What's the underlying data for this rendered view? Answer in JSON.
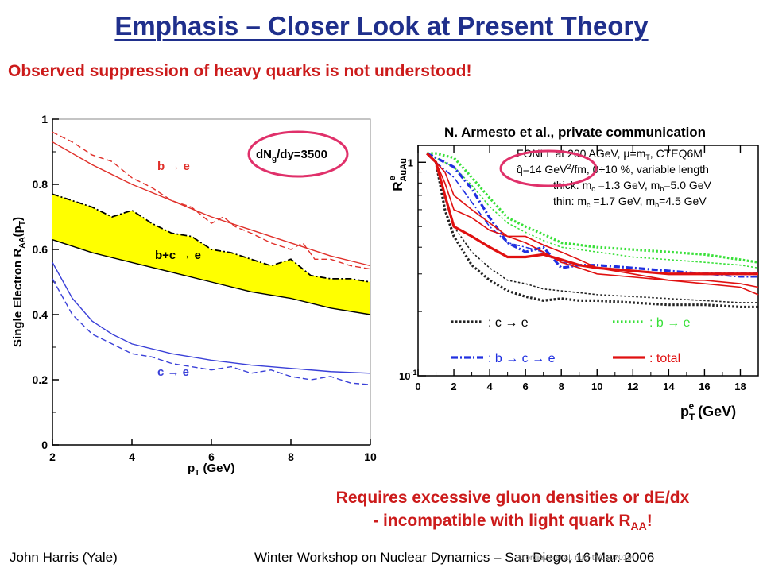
{
  "title": "Emphasis – Closer Look at Present Theory",
  "subtitle": "Observed suppression of heavy quarks is not understood!",
  "conclusion": {
    "line1": "Requires excessive gluon densities or dE/dx",
    "line2_prefix": "- incompatible with light quark R",
    "line2_sub": "AA",
    "line2_suffix": "!"
  },
  "footer": {
    "author": "John Harris (Yale)",
    "event": "Winter Workshop on Nuclear Dynamics – San Diego, 16 Mar. 2006",
    "reference": "Djordjevic et al. nucl-th/0507019"
  },
  "colors": {
    "title": "#1f2f8c",
    "accent": "#cc1b1b",
    "band": "#ffff00",
    "highlight_circle": "#e0306a"
  },
  "chart_data": [
    {
      "type": "line",
      "ylabel_prefix": "Single Electron R",
      "ylabel_sub": "AA",
      "ylabel_suffix": "(p",
      "ylabel_sub2": "T",
      "ylabel_end": ")",
      "xlabel_prefix": "p",
      "xlabel_sub": "T",
      "xlabel_suffix": " (GeV)",
      "xlim": [
        2,
        10
      ],
      "ylim": [
        0,
        1
      ],
      "x_ticks": [
        "2",
        "4",
        "6",
        "8",
        "10"
      ],
      "y_ticks": [
        "1",
        "0.8",
        "0.6",
        "0.4",
        "0.2",
        "0"
      ],
      "annotation_prefix": "dN",
      "annotation_sub": "g",
      "annotation_suffix": "/dy=3500",
      "labels": {
        "be": "b → e",
        "bce": "b+c → e",
        "ce": "c → e"
      },
      "series": [
        {
          "label_key": "be",
          "style": "solid",
          "color": "#e0302a",
          "x": [
            2,
            3,
            4,
            5,
            6,
            7,
            8,
            9,
            10
          ],
          "y": [
            0.93,
            0.86,
            0.8,
            0.75,
            0.7,
            0.66,
            0.62,
            0.58,
            0.55
          ]
        },
        {
          "label_key": "be",
          "style": "dashed",
          "color": "#e0302a",
          "x": [
            2,
            2.5,
            3,
            3.5,
            4,
            4.5,
            5,
            5.5,
            6,
            6.3,
            6.6,
            7,
            7.5,
            8,
            8.3,
            8.6,
            9,
            9.5,
            10
          ],
          "y": [
            0.96,
            0.93,
            0.89,
            0.87,
            0.82,
            0.79,
            0.75,
            0.73,
            0.68,
            0.7,
            0.67,
            0.65,
            0.62,
            0.6,
            0.62,
            0.57,
            0.57,
            0.55,
            0.54
          ]
        },
        {
          "label_key": "bce",
          "style": "dashdot",
          "color": "#000000",
          "band_upper": true,
          "x": [
            2,
            2.5,
            3,
            3.5,
            4,
            4.5,
            5,
            5.5,
            6,
            6.5,
            7,
            7.5,
            8,
            8.5,
            9,
            9.5,
            10
          ],
          "y": [
            0.77,
            0.75,
            0.73,
            0.7,
            0.72,
            0.68,
            0.65,
            0.64,
            0.6,
            0.59,
            0.57,
            0.55,
            0.57,
            0.52,
            0.51,
            0.51,
            0.5
          ]
        },
        {
          "label_key": "bce",
          "style": "solid",
          "color": "#000000",
          "band_lower": true,
          "x": [
            2,
            3,
            4,
            5,
            6,
            7,
            8,
            9,
            10
          ],
          "y": [
            0.63,
            0.59,
            0.56,
            0.53,
            0.5,
            0.47,
            0.45,
            0.42,
            0.4
          ]
        },
        {
          "label_key": "ce",
          "style": "solid",
          "color": "#3a40d8",
          "x": [
            2,
            2.5,
            3,
            3.5,
            4,
            5,
            6,
            7,
            8,
            9,
            10
          ],
          "y": [
            0.56,
            0.45,
            0.38,
            0.34,
            0.31,
            0.28,
            0.26,
            0.245,
            0.235,
            0.225,
            0.22
          ]
        },
        {
          "label_key": "ce",
          "style": "dashed",
          "color": "#3a40d8",
          "x": [
            2,
            2.5,
            3,
            3.5,
            4,
            4.5,
            5,
            5.5,
            6,
            6.5,
            7,
            7.5,
            8,
            8.5,
            9,
            9.5,
            10
          ],
          "y": [
            0.51,
            0.4,
            0.34,
            0.31,
            0.28,
            0.27,
            0.25,
            0.24,
            0.23,
            0.24,
            0.22,
            0.23,
            0.21,
            0.2,
            0.21,
            0.19,
            0.185
          ]
        }
      ]
    },
    {
      "type": "line",
      "title": "N. Armesto et al., private communication",
      "ylabel_prefix": "R",
      "ylabel_sup": "e",
      "ylabel_sub": "AuAu",
      "xlabel_prefix": "p",
      "xlabel_sup": "e",
      "xlabel_sub": "T",
      "xlabel_suffix": " (GeV)",
      "xlim": [
        0,
        19
      ],
      "ylim": [
        0.1,
        1.2
      ],
      "yscale": "log",
      "x_ticks": [
        "0",
        "2",
        "4",
        "6",
        "8",
        "10",
        "12",
        "14",
        "16",
        "18"
      ],
      "y_tick_top": "1",
      "y_tick_bottom_base": "10",
      "y_tick_bottom_exp": "-1",
      "info": {
        "line1": "FONLL at 200 AGeV, μ=m",
        "line1_sub": "T",
        "line1_end": ", CTEQ6M",
        "line2_prefix": "q̂=14 GeV",
        "line2_sup": "2",
        "line2_end": "/fm, 0÷10 %, variable length",
        "line3_prefix": "thick: m",
        "line3_sub1": "c",
        "line3_mid": " =1.3 GeV, m",
        "line3_sub2": "b",
        "line3_end": "=5.0 GeV",
        "line4_prefix": "thin: m",
        "line4_sub1": "c",
        "line4_mid": " =1.7 GeV, m",
        "line4_sub2": "b",
        "line4_end": "=4.5 GeV"
      },
      "legend": [
        {
          "label": ": c → e",
          "color": "#222222",
          "style": "dotted"
        },
        {
          "label": ": b → e",
          "color": "#39e039",
          "style": "dotted"
        },
        {
          "label": ": b → c → e",
          "color": "#2030e0",
          "style": "dashdot"
        },
        {
          "label": ": total",
          "color": "#e01010",
          "style": "solid"
        }
      ],
      "series": [
        {
          "legend_index": 0,
          "thick": true,
          "x": [
            0.5,
            1,
            1.5,
            2,
            3,
            4,
            5,
            6,
            7,
            8,
            9,
            10,
            12,
            14,
            16,
            18,
            19
          ],
          "y": [
            1.1,
            1.0,
            0.6,
            0.45,
            0.33,
            0.28,
            0.25,
            0.235,
            0.225,
            0.23,
            0.225,
            0.225,
            0.22,
            0.215,
            0.215,
            0.21,
            0.21
          ]
        },
        {
          "legend_index": 0,
          "thick": false,
          "x": [
            0.5,
            1,
            1.5,
            2,
            3,
            4,
            5,
            6,
            7,
            8,
            9,
            10,
            12,
            14,
            16,
            18,
            19
          ],
          "y": [
            1.1,
            1.0,
            0.68,
            0.5,
            0.38,
            0.32,
            0.28,
            0.27,
            0.255,
            0.25,
            0.245,
            0.24,
            0.235,
            0.23,
            0.225,
            0.22,
            0.22
          ]
        },
        {
          "legend_index": 1,
          "thick": true,
          "x": [
            0.5,
            1,
            2,
            3,
            4,
            5,
            6,
            7,
            8,
            9,
            10,
            12,
            14,
            16,
            18,
            19
          ],
          "y": [
            1.1,
            1.1,
            1.05,
            0.85,
            0.68,
            0.55,
            0.5,
            0.46,
            0.42,
            0.41,
            0.4,
            0.39,
            0.38,
            0.37,
            0.35,
            0.34
          ]
        },
        {
          "legend_index": 1,
          "thick": false,
          "x": [
            0.5,
            1,
            2,
            3,
            4,
            5,
            6,
            7,
            8,
            9,
            10,
            12,
            14,
            16,
            18,
            19
          ],
          "y": [
            1.1,
            1.05,
            0.95,
            0.78,
            0.62,
            0.52,
            0.47,
            0.43,
            0.4,
            0.39,
            0.38,
            0.36,
            0.35,
            0.34,
            0.33,
            0.32
          ]
        },
        {
          "legend_index": 2,
          "thick": true,
          "x": [
            0.5,
            1,
            2,
            3,
            4,
            5,
            6,
            7,
            8,
            9,
            10,
            12,
            14,
            16,
            18,
            19
          ],
          "y": [
            1.1,
            1.05,
            0.95,
            0.75,
            0.55,
            0.42,
            0.38,
            0.4,
            0.32,
            0.33,
            0.33,
            0.32,
            0.31,
            0.3,
            0.3,
            0.3
          ]
        },
        {
          "legend_index": 2,
          "thick": false,
          "x": [
            0.5,
            1,
            2,
            3,
            4,
            5,
            6,
            7,
            8,
            9,
            10,
            12,
            14,
            16,
            18,
            19
          ],
          "y": [
            1.1,
            1.0,
            0.85,
            0.65,
            0.5,
            0.42,
            0.4,
            0.38,
            0.34,
            0.33,
            0.32,
            0.31,
            0.3,
            0.3,
            0.29,
            0.29
          ]
        },
        {
          "legend_index": 3,
          "thick": true,
          "x": [
            0.5,
            1,
            1.5,
            2,
            3,
            4,
            5,
            6,
            7,
            8,
            9,
            10,
            12,
            14,
            16,
            18,
            19
          ],
          "y": [
            1.1,
            1.0,
            0.7,
            0.5,
            0.45,
            0.4,
            0.36,
            0.36,
            0.37,
            0.35,
            0.33,
            0.32,
            0.31,
            0.3,
            0.3,
            0.3,
            0.3
          ]
        },
        {
          "legend_index": 3,
          "thick": false,
          "x": [
            0.5,
            1,
            1.5,
            2,
            3,
            4,
            5,
            6,
            7,
            8,
            9,
            10,
            12,
            14,
            16,
            18,
            19
          ],
          "y": [
            1.1,
            1.0,
            0.8,
            0.6,
            0.55,
            0.48,
            0.45,
            0.42,
            0.38,
            0.34,
            0.32,
            0.3,
            0.29,
            0.28,
            0.28,
            0.27,
            0.26
          ]
        },
        {
          "legend_index": 3,
          "thick": false,
          "x": [
            0.5,
            1,
            1.5,
            2,
            3,
            4,
            5,
            6,
            7,
            8,
            9,
            10,
            12,
            14,
            16,
            18,
            19
          ],
          "y": [
            1.1,
            1.0,
            0.9,
            0.7,
            0.6,
            0.52,
            0.45,
            0.45,
            0.41,
            0.38,
            0.35,
            0.32,
            0.3,
            0.28,
            0.27,
            0.26,
            0.24
          ]
        }
      ]
    }
  ]
}
